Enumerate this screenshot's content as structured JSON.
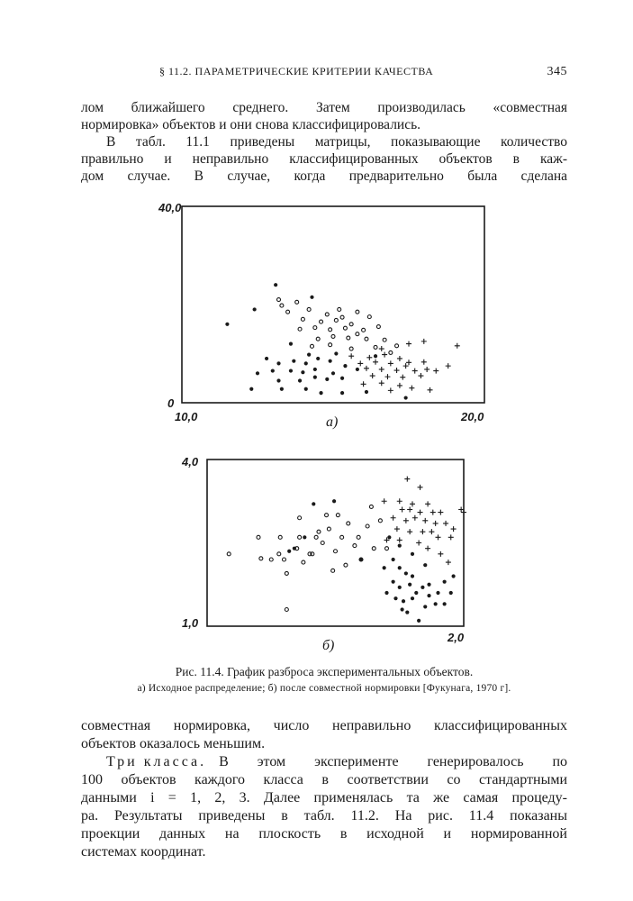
{
  "header": {
    "title": "§ 11.2. ПАРАМЕТРИЧЕСКИЕ КРИТЕРИИ КАЧЕСТВА",
    "page_number": "345"
  },
  "top_text": [
    "лом ближайшего среднего. Затем производилась «совместная",
    "нормировка» объектов и они снова классифицировались.",
    "В табл. 11.1 приведены матрицы, показывающие количество",
    "правильно и неправильно классифицированных объектов в каж-",
    "дом случае. В случае, когда предварительно была сделана"
  ],
  "caption": {
    "title": "Рис. 11.4. График разброса экспериментальных объектов.",
    "subtitle": "а) Исходное распределение; б) после совместной нормировки [Фукунага, 1970 г]."
  },
  "bottom_text": {
    "p1": [
      "совместная нормировка, число неправильно классифицированных",
      "объектов оказалось меньшим."
    ],
    "p2_lead": "Три класса.",
    "p2": [
      "В этом эксперименте генерировалось по",
      "100 объектов каждого класса в соответствии со стандартными",
      "данными i = 1, 2, 3. Далее применялась та же самая процеду-",
      "ра. Результаты приведены в табл. 11.2. На рис. 11.4 показаны",
      "проекции данных на плоскость в исходной и нормированной",
      "системах координат."
    ]
  },
  "chart_data": [
    {
      "type": "scatter",
      "panel_label": "а)",
      "xlim": [
        10.0,
        20.0
      ],
      "ylim": [
        0,
        40.0
      ],
      "x_tick_labels": [
        "10,0",
        "20,0"
      ],
      "y_tick_labels": [
        "0",
        "40,0"
      ],
      "grid": false,
      "color": "#1a1a1a",
      "series": [
        {
          "marker": "open-circle",
          "points": [
            [
              13.2,
              21
            ],
            [
              13.8,
              20.5
            ],
            [
              13.5,
              18.5
            ],
            [
              14.2,
              19
            ],
            [
              14.8,
              18
            ],
            [
              15.2,
              19
            ],
            [
              15.8,
              18.5
            ],
            [
              14,
              17
            ],
            [
              14.6,
              16.5
            ],
            [
              15.1,
              16.8
            ],
            [
              15.6,
              16
            ],
            [
              16.2,
              17.5
            ],
            [
              13.9,
              15
            ],
            [
              14.4,
              15.3
            ],
            [
              14.9,
              14.9
            ],
            [
              15.4,
              15.2
            ],
            [
              16,
              14.8
            ],
            [
              16.5,
              15.5
            ],
            [
              14.5,
              13
            ],
            [
              15,
              13.5
            ],
            [
              15.5,
              13.2
            ],
            [
              16.1,
              13
            ],
            [
              16.7,
              12.8
            ],
            [
              14.3,
              11.5
            ],
            [
              14.9,
              11.8
            ],
            [
              15.6,
              11
            ],
            [
              16.4,
              11.3
            ],
            [
              17.1,
              11.6
            ],
            [
              13.3,
              19.8
            ],
            [
              15.3,
              17.4
            ],
            [
              16.9,
              10.2
            ],
            [
              15.8,
              14
            ]
          ]
        },
        {
          "marker": "filled-dot",
          "points": [
            [
              11.5,
              16
            ],
            [
              12.4,
              19
            ],
            [
              13.1,
              24
            ],
            [
              14.3,
              21.5
            ],
            [
              12.8,
              9
            ],
            [
              13.2,
              8
            ],
            [
              12.5,
              6
            ],
            [
              13,
              6.5
            ],
            [
              13.7,
              8.5
            ],
            [
              14.1,
              8
            ],
            [
              14.5,
              9
            ],
            [
              14.9,
              8.5
            ],
            [
              13.6,
              6.5
            ],
            [
              14,
              6.2
            ],
            [
              14.4,
              6.8
            ],
            [
              15,
              6
            ],
            [
              15.4,
              7.5
            ],
            [
              15.8,
              6.8
            ],
            [
              13.2,
              4.5
            ],
            [
              13.9,
              4.5
            ],
            [
              14.4,
              5.2
            ],
            [
              14.8,
              4.8
            ],
            [
              15.3,
              5
            ],
            [
              12.3,
              2.8
            ],
            [
              13.3,
              2.8
            ],
            [
              14.1,
              2.8
            ],
            [
              14.6,
              2
            ],
            [
              15.3,
              2
            ],
            [
              16.1,
              2.2
            ],
            [
              17.4,
              1
            ],
            [
              15.1,
              10
            ],
            [
              13.6,
              12
            ],
            [
              14.2,
              9.8
            ],
            [
              16.4,
              9.5
            ]
          ]
        },
        {
          "marker": "plus",
          "points": [
            [
              15.6,
              9.5
            ],
            [
              16.2,
              9.2
            ],
            [
              16.7,
              9.8
            ],
            [
              17.2,
              9
            ],
            [
              17.5,
              8.2
            ],
            [
              15.9,
              8
            ],
            [
              16.4,
              8.3
            ],
            [
              16.9,
              8
            ],
            [
              17.4,
              7.5
            ],
            [
              18,
              8.3
            ],
            [
              16.1,
              7
            ],
            [
              16.6,
              6.8
            ],
            [
              17.1,
              6.6
            ],
            [
              17.7,
              6.5
            ],
            [
              18.1,
              6.8
            ],
            [
              16.3,
              5.5
            ],
            [
              16.8,
              5.3
            ],
            [
              17.3,
              5.2
            ],
            [
              17.9,
              5.5
            ],
            [
              18.4,
              6.5
            ],
            [
              16,
              3.8
            ],
            [
              16.6,
              4
            ],
            [
              17.2,
              3.5
            ],
            [
              17.6,
              3
            ],
            [
              18.2,
              2.6
            ],
            [
              18.8,
              7.5
            ],
            [
              19.1,
              11.6
            ],
            [
              17.5,
              12
            ],
            [
              16.6,
              11
            ],
            [
              16.9,
              2.5
            ],
            [
              18,
              12.5
            ]
          ]
        }
      ]
    },
    {
      "type": "scatter",
      "panel_label": "б)",
      "xlim": [
        0,
        2.0
      ],
      "ylim": [
        1.0,
        4.0
      ],
      "x_tick_labels": [
        "2,0"
      ],
      "y_tick_labels": [
        "1,0",
        "4,0"
      ],
      "grid": false,
      "color": "#1a1a1a",
      "series": [
        {
          "marker": "open-circle",
          "points": [
            [
              0.17,
              2.3
            ],
            [
              0.42,
              2.22
            ],
            [
              0.5,
              2.2
            ],
            [
              0.56,
              2.3
            ],
            [
              0.6,
              2.2
            ],
            [
              0.62,
              1.95
            ],
            [
              0.57,
              2.6
            ],
            [
              0.7,
              2.4
            ],
            [
              0.72,
              2.6
            ],
            [
              0.75,
              2.15
            ],
            [
              0.8,
              2.3
            ],
            [
              0.85,
              2.6
            ],
            [
              0.9,
              2.5
            ],
            [
              0.95,
              2.75
            ],
            [
              1,
              2.35
            ],
            [
              1.05,
              2.6
            ],
            [
              1.1,
              2.85
            ],
            [
              1.15,
              2.45
            ],
            [
              1.2,
              2.2
            ],
            [
              1.25,
              2.8
            ],
            [
              1.3,
              2.4
            ],
            [
              1.08,
              2.1
            ],
            [
              0.98,
              2.0
            ],
            [
              0.93,
              3
            ],
            [
              0.72,
              2.95
            ],
            [
              0.82,
              2.3
            ],
            [
              0.62,
              1.3
            ],
            [
              0.4,
              2.6
            ],
            [
              1.18,
              2.6
            ],
            [
              1.02,
              3.0
            ],
            [
              0.87,
              2.7
            ],
            [
              1.28,
              3.15
            ],
            [
              1.35,
              2.9
            ],
            [
              1.4,
              2.4
            ]
          ]
        },
        {
          "marker": "filled-dot",
          "points": [
            [
              0.83,
              3.2
            ],
            [
              0.99,
              3.25
            ],
            [
              0.64,
              2.35
            ],
            [
              0.68,
              2.4
            ],
            [
              0.76,
              2.6
            ],
            [
              1.2,
              2.2
            ],
            [
              1.38,
              2.05
            ],
            [
              1.45,
              2.2
            ],
            [
              1.5,
              2.05
            ],
            [
              1.55,
              1.95
            ],
            [
              1.6,
              1.9
            ],
            [
              1.45,
              1.8
            ],
            [
              1.5,
              1.7
            ],
            [
              1.58,
              1.75
            ],
            [
              1.63,
              1.6
            ],
            [
              1.68,
              1.7
            ],
            [
              1.73,
              1.55
            ],
            [
              1.8,
              1.6
            ],
            [
              1.4,
              1.6
            ],
            [
              1.47,
              1.5
            ],
            [
              1.53,
              1.45
            ],
            [
              1.6,
              1.5
            ],
            [
              1.7,
              1.35
            ],
            [
              1.78,
              1.4
            ],
            [
              1.85,
              1.4
            ],
            [
              1.9,
              1.6
            ],
            [
              1.52,
              1.3
            ],
            [
              1.56,
              1.25
            ],
            [
              1.65,
              1.1
            ],
            [
              1.73,
              1.75
            ],
            [
              1.85,
              1.8
            ],
            [
              1.92,
              1.9
            ],
            [
              1.42,
              2.6
            ],
            [
              1.5,
              2.45
            ],
            [
              1.6,
              2.3
            ],
            [
              1.7,
              2.1
            ]
          ]
        },
        {
          "marker": "plus",
          "points": [
            [
              1.56,
              3.65
            ],
            [
              1.66,
              3.5
            ],
            [
              1.38,
              3.25
            ],
            [
              1.5,
              3.25
            ],
            [
              1.6,
              3.2
            ],
            [
              1.72,
              3.2
            ],
            [
              1.52,
              3.1
            ],
            [
              1.58,
              3.1
            ],
            [
              1.66,
              3.05
            ],
            [
              1.76,
              3.05
            ],
            [
              1.82,
              3.05
            ],
            [
              1.45,
              2.95
            ],
            [
              1.55,
              2.9
            ],
            [
              1.62,
              2.95
            ],
            [
              1.7,
              2.9
            ],
            [
              1.78,
              2.85
            ],
            [
              1.86,
              2.85
            ],
            [
              1.92,
              2.75
            ],
            [
              1.98,
              3.1
            ],
            [
              2.0,
              3.05
            ],
            [
              1.48,
              2.75
            ],
            [
              1.58,
              2.7
            ],
            [
              1.68,
              2.7
            ],
            [
              1.75,
              2.7
            ],
            [
              1.8,
              2.6
            ],
            [
              1.9,
              2.6
            ],
            [
              1.4,
              2.55
            ],
            [
              1.5,
              2.55
            ],
            [
              1.65,
              2.5
            ],
            [
              1.72,
              2.4
            ],
            [
              1.82,
              2.3
            ],
            [
              1.88,
              2.15
            ]
          ]
        }
      ]
    }
  ]
}
